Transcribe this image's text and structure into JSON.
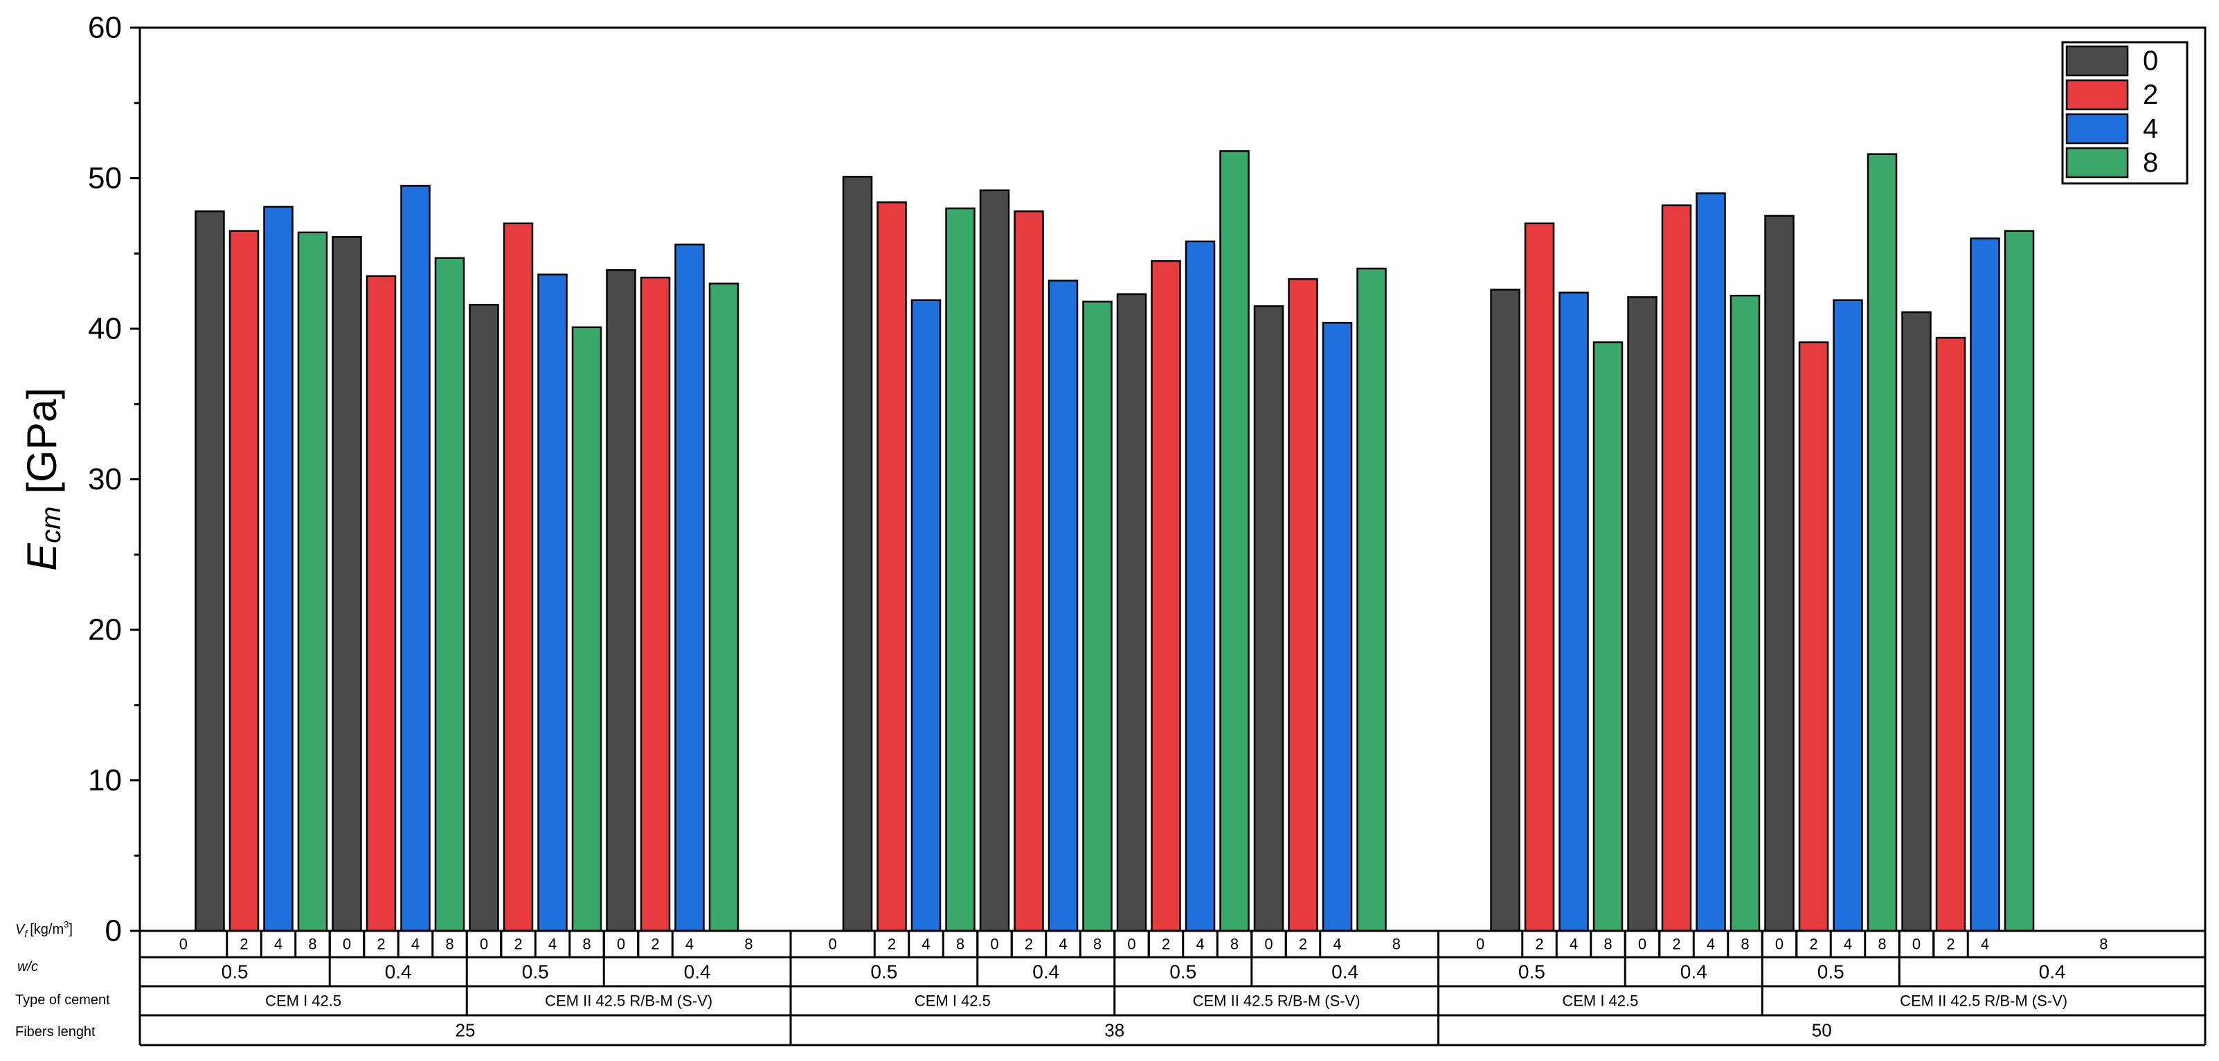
{
  "chart_data": {
    "type": "bar",
    "ylabel_main": "E",
    "ylabel_sub": "cm",
    "ylabel_unit": "[GPa]",
    "ylim": [
      0,
      60
    ],
    "yticks": [
      "0",
      "10",
      "20",
      "30",
      "40",
      "50",
      "60"
    ],
    "legend": {
      "placement": "top-right",
      "entries": [
        {
          "name": "0",
          "color": "#4a4a4a"
        },
        {
          "name": "2",
          "color": "#e63c40"
        },
        {
          "name": "4",
          "color": "#1f6fdc"
        },
        {
          "name": "8",
          "color": "#3aa86a"
        }
      ]
    },
    "row_labels": {
      "vf_main": "V",
      "vf_sub": "f",
      "vf_unit": "[kg/m",
      "vf_sup": "3",
      "vf_close": "]",
      "wc": "w/c",
      "cement": "Type of cement",
      "fibers": "Fibers lenght"
    },
    "groups": [
      {
        "length": "25",
        "cement": "CEM I 42.5",
        "wc": "0.5",
        "bars": [
          [
            0,
            47.8
          ],
          [
            2,
            46.5
          ],
          [
            4,
            48.1
          ],
          [
            8,
            46.4
          ]
        ]
      },
      {
        "length": "25",
        "cement": "CEM I 42.5",
        "wc": "0.4",
        "bars": [
          [
            0,
            46.1
          ],
          [
            2,
            43.5
          ],
          [
            4,
            49.5
          ],
          [
            8,
            44.7
          ]
        ]
      },
      {
        "length": "25",
        "cement": "CEM II 42.5 R/B-M (S-V)",
        "wc": "0.5",
        "bars": [
          [
            0,
            41.6
          ],
          [
            2,
            47.0
          ],
          [
            4,
            43.6
          ],
          [
            8,
            40.1
          ]
        ]
      },
      {
        "length": "25",
        "cement": "CEM II 42.5 R/B-M (S-V)",
        "wc": "0.4",
        "bars": [
          [
            0,
            43.9
          ],
          [
            2,
            43.4
          ],
          [
            4,
            45.6
          ],
          [
            8,
            43.0
          ]
        ]
      },
      {
        "length": "38",
        "cement": "CEM I 42.5",
        "wc": "0.5",
        "bars": [
          [
            0,
            50.1
          ],
          [
            2,
            48.4
          ],
          [
            4,
            41.9
          ],
          [
            8,
            48.0
          ]
        ]
      },
      {
        "length": "38",
        "cement": "CEM I 42.5",
        "wc": "0.4",
        "bars": [
          [
            0,
            49.2
          ],
          [
            2,
            47.8
          ],
          [
            4,
            43.2
          ],
          [
            8,
            41.8
          ]
        ]
      },
      {
        "length": "38",
        "cement": "CEM II 42.5 R/B-M (S-V)",
        "wc": "0.5",
        "bars": [
          [
            0,
            42.3
          ],
          [
            2,
            44.5
          ],
          [
            4,
            45.8
          ],
          [
            8,
            51.8
          ]
        ]
      },
      {
        "length": "38",
        "cement": "CEM II 42.5 R/B-M (S-V)",
        "wc": "0.4",
        "bars": [
          [
            0,
            41.5
          ],
          [
            2,
            43.3
          ],
          [
            4,
            40.4
          ],
          [
            8,
            44.0
          ]
        ]
      },
      {
        "length": "50",
        "cement": "CEM I 42.5",
        "wc": "0.5",
        "bars": [
          [
            0,
            42.6
          ],
          [
            2,
            47.0
          ],
          [
            4,
            42.4
          ],
          [
            8,
            39.1
          ]
        ]
      },
      {
        "length": "50",
        "cement": "CEM I 42.5",
        "wc": "0.4",
        "bars": [
          [
            0,
            42.1
          ],
          [
            2,
            48.2
          ],
          [
            4,
            49.0
          ],
          [
            8,
            42.2
          ]
        ]
      },
      {
        "length": "50",
        "cement": "CEM II 42.5 R/B-M (S-V)",
        "wc": "0.5",
        "bars": [
          [
            0,
            47.5
          ],
          [
            2,
            39.1
          ],
          [
            4,
            41.9
          ],
          [
            8,
            51.6
          ]
        ]
      },
      {
        "length": "50",
        "cement": "CEM II 42.5 R/B-M (S-V)",
        "wc": "0.4",
        "bars": [
          [
            0,
            41.1
          ],
          [
            2,
            39.4
          ],
          [
            4,
            46.0
          ],
          [
            8,
            46.5
          ]
        ]
      }
    ]
  }
}
